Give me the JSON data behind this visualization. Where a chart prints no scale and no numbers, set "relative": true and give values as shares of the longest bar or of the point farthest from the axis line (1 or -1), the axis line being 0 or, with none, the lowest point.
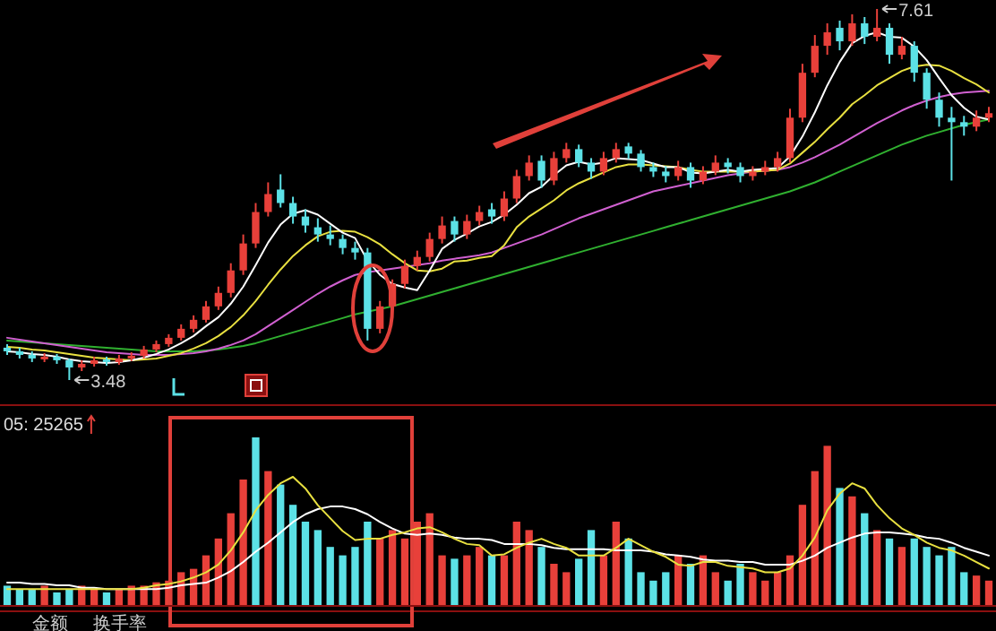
{
  "chart_data": [
    {
      "type": "candlestick",
      "categories": [
        null,
        null,
        null,
        null,
        null,
        null,
        null,
        null,
        null,
        null,
        null,
        null,
        null,
        null,
        null,
        null,
        null,
        null,
        null,
        null,
        null,
        null,
        null,
        null,
        null,
        null,
        null,
        null,
        null,
        null,
        null,
        null,
        null,
        null,
        null,
        null,
        null,
        null,
        null,
        null,
        null,
        null,
        null,
        null,
        null,
        null,
        null,
        null,
        null,
        null,
        null,
        null,
        null,
        null,
        null,
        null,
        null,
        null,
        null,
        null,
        null,
        null,
        null,
        null,
        null,
        null,
        null,
        null,
        null,
        null,
        null,
        null,
        null,
        null,
        null,
        null,
        null,
        null,
        null,
        null
      ],
      "ohlc": [
        [
          3.84,
          3.88,
          3.76,
          3.8
        ],
        [
          3.8,
          3.84,
          3.72,
          3.76
        ],
        [
          3.76,
          3.8,
          3.68,
          3.72
        ],
        [
          3.71,
          3.78,
          3.68,
          3.74
        ],
        [
          3.74,
          3.77,
          3.66,
          3.7
        ],
        [
          3.7,
          3.72,
          3.48,
          3.62
        ],
        [
          3.62,
          3.7,
          3.58,
          3.66
        ],
        [
          3.66,
          3.74,
          3.63,
          3.7
        ],
        [
          3.71,
          3.74,
          3.64,
          3.68
        ],
        [
          3.68,
          3.76,
          3.65,
          3.72
        ],
        [
          3.72,
          3.79,
          3.69,
          3.75
        ],
        [
          3.75,
          3.86,
          3.72,
          3.82
        ],
        [
          3.82,
          3.92,
          3.79,
          3.88
        ],
        [
          3.88,
          3.99,
          3.85,
          3.95
        ],
        [
          3.95,
          4.1,
          3.92,
          4.05
        ],
        [
          4.05,
          4.2,
          4.01,
          4.15
        ],
        [
          4.15,
          4.36,
          4.12,
          4.3
        ],
        [
          4.3,
          4.52,
          4.26,
          4.45
        ],
        [
          4.45,
          4.78,
          4.4,
          4.7
        ],
        [
          4.7,
          5.1,
          4.65,
          5.0
        ],
        [
          5.0,
          5.45,
          4.95,
          5.35
        ],
        [
          5.35,
          5.68,
          5.3,
          5.55
        ],
        [
          5.6,
          5.77,
          5.4,
          5.45
        ],
        [
          5.45,
          5.52,
          5.22,
          5.3
        ],
        [
          5.3,
          5.38,
          5.12,
          5.2
        ],
        [
          5.18,
          5.28,
          5.02,
          5.1
        ],
        [
          5.1,
          5.2,
          4.98,
          5.05
        ],
        [
          5.05,
          5.1,
          4.88,
          4.95
        ],
        [
          4.95,
          5.02,
          4.82,
          4.9
        ],
        [
          4.9,
          4.95,
          3.92,
          4.05
        ],
        [
          4.05,
          4.36,
          4.0,
          4.3
        ],
        [
          4.3,
          4.6,
          4.25,
          4.55
        ],
        [
          4.55,
          4.82,
          4.5,
          4.75
        ],
        [
          4.75,
          4.92,
          4.7,
          4.85
        ],
        [
          4.85,
          5.12,
          4.8,
          5.05
        ],
        [
          5.05,
          5.3,
          5.0,
          5.2
        ],
        [
          5.25,
          5.3,
          5.02,
          5.1
        ],
        [
          5.1,
          5.32,
          5.05,
          5.25
        ],
        [
          5.25,
          5.42,
          5.2,
          5.35
        ],
        [
          5.38,
          5.45,
          5.22,
          5.3
        ],
        [
          5.3,
          5.58,
          5.25,
          5.5
        ],
        [
          5.5,
          5.82,
          5.45,
          5.75
        ],
        [
          5.75,
          5.98,
          5.7,
          5.9
        ],
        [
          5.92,
          5.98,
          5.62,
          5.7
        ],
        [
          5.7,
          6.02,
          5.65,
          5.95
        ],
        [
          5.95,
          6.12,
          5.9,
          6.05
        ],
        [
          6.05,
          6.1,
          5.85,
          5.9
        ],
        [
          5.9,
          5.95,
          5.72,
          5.8
        ],
        [
          5.8,
          6.02,
          5.76,
          5.95
        ],
        [
          5.95,
          6.12,
          5.9,
          6.05
        ],
        [
          6.08,
          6.12,
          5.94,
          6.0
        ],
        [
          6.0,
          6.04,
          5.8,
          5.85
        ],
        [
          5.85,
          5.9,
          5.74,
          5.8
        ],
        [
          5.8,
          5.86,
          5.68,
          5.75
        ],
        [
          5.75,
          5.92,
          5.7,
          5.85
        ],
        [
          5.85,
          5.9,
          5.62,
          5.7
        ],
        [
          5.7,
          5.86,
          5.66,
          5.8
        ],
        [
          5.8,
          5.98,
          5.76,
          5.9
        ],
        [
          5.9,
          5.95,
          5.78,
          5.85
        ],
        [
          5.85,
          5.9,
          5.68,
          5.75
        ],
        [
          5.75,
          5.86,
          5.7,
          5.8
        ],
        [
          5.8,
          5.92,
          5.76,
          5.85
        ],
        [
          5.85,
          6.02,
          5.8,
          5.95
        ],
        [
          5.95,
          6.5,
          5.9,
          6.4
        ],
        [
          6.4,
          7.0,
          6.35,
          6.9
        ],
        [
          6.9,
          7.32,
          6.85,
          7.2
        ],
        [
          7.2,
          7.45,
          7.1,
          7.35
        ],
        [
          7.4,
          7.48,
          7.15,
          7.25
        ],
        [
          7.25,
          7.55,
          7.2,
          7.45
        ],
        [
          7.45,
          7.52,
          7.22,
          7.3
        ],
        [
          7.3,
          7.61,
          7.25,
          7.4
        ],
        [
          7.4,
          7.45,
          7.0,
          7.1
        ],
        [
          7.1,
          7.3,
          7.05,
          7.2
        ],
        [
          7.2,
          7.25,
          6.8,
          6.9
        ],
        [
          6.9,
          6.95,
          6.5,
          6.6
        ],
        [
          6.6,
          6.68,
          6.3,
          6.4
        ],
        [
          6.4,
          6.52,
          5.7,
          6.35
        ],
        [
          6.35,
          6.42,
          6.2,
          6.3
        ],
        [
          6.3,
          6.48,
          6.25,
          6.4
        ],
        [
          6.4,
          6.52,
          6.35,
          6.45
        ]
      ],
      "colors": [
        "#5ce1e6",
        "#5ce1e6",
        "#5ce1e6",
        "#e8403a",
        "#5ce1e6",
        "#5ce1e6",
        "#e8403a",
        "#e8403a",
        "#5ce1e6",
        "#e8403a",
        "#e8403a",
        "#e8403a",
        "#e8403a",
        "#e8403a",
        "#e8403a",
        "#e8403a",
        "#e8403a",
        "#e8403a",
        "#e8403a",
        "#e8403a",
        "#e8403a",
        "#e8403a",
        "#5ce1e6",
        "#5ce1e6",
        "#5ce1e6",
        "#5ce1e6",
        "#5ce1e6",
        "#5ce1e6",
        "#5ce1e6",
        "#5ce1e6",
        "#e8403a",
        "#e8403a",
        "#e8403a",
        "#e8403a",
        "#e8403a",
        "#e8403a",
        "#5ce1e6",
        "#e8403a",
        "#e8403a",
        "#5ce1e6",
        "#e8403a",
        "#e8403a",
        "#e8403a",
        "#5ce1e6",
        "#e8403a",
        "#e8403a",
        "#5ce1e6",
        "#5ce1e6",
        "#e8403a",
        "#e8403a",
        "#5ce1e6",
        "#5ce1e6",
        "#5ce1e6",
        "#5ce1e6",
        "#e8403a",
        "#5ce1e6",
        "#e8403a",
        "#e8403a",
        "#5ce1e6",
        "#5ce1e6",
        "#e8403a",
        "#e8403a",
        "#e8403a",
        "#e8403a",
        "#e8403a",
        "#e8403a",
        "#e8403a",
        "#5ce1e6",
        "#e8403a",
        "#5ce1e6",
        "#e8403a",
        "#5ce1e6",
        "#e8403a",
        "#5ce1e6",
        "#5ce1e6",
        "#5ce1e6",
        "#5ce1e6",
        "#5ce1e6",
        "#e8403a",
        "#e8403a"
      ],
      "series": [
        {
          "type": "line",
          "color": "#30b030",
          "values": [
            3.92,
            3.91,
            3.9,
            3.89,
            3.88,
            3.87,
            3.86,
            3.85,
            3.84,
            3.83,
            3.82,
            3.81,
            3.8,
            3.8,
            3.8,
            3.8,
            3.81,
            3.82,
            3.84,
            3.86,
            3.89,
            3.93,
            3.97,
            4.01,
            4.05,
            4.09,
            4.13,
            4.17,
            4.21,
            4.24,
            4.27,
            4.3,
            4.34,
            4.38,
            4.42,
            4.46,
            4.5,
            4.54,
            4.58,
            4.62,
            4.66,
            4.7,
            4.74,
            4.78,
            4.82,
            4.86,
            4.9,
            4.94,
            4.98,
            5.02,
            5.06,
            5.1,
            5.14,
            5.18,
            5.22,
            5.26,
            5.3,
            5.34,
            5.38,
            5.42,
            5.46,
            5.5,
            5.54,
            5.58,
            5.63,
            5.68,
            5.74,
            5.8,
            5.86,
            5.92,
            5.98,
            6.04,
            6.1,
            6.15,
            6.2,
            6.24,
            6.28,
            6.32,
            6.35,
            6.38
          ]
        },
        {
          "type": "line",
          "color": "#d060d0",
          "values": [
            3.95,
            3.93,
            3.91,
            3.89,
            3.87,
            3.85,
            3.83,
            3.81,
            3.79,
            3.78,
            3.77,
            3.76,
            3.76,
            3.76,
            3.77,
            3.78,
            3.8,
            3.83,
            3.87,
            3.92,
            3.99,
            4.08,
            4.17,
            4.26,
            4.35,
            4.44,
            4.52,
            4.59,
            4.65,
            4.68,
            4.7,
            4.72,
            4.74,
            4.76,
            4.78,
            4.81,
            4.83,
            4.85,
            4.87,
            4.9,
            4.95,
            5.0,
            5.05,
            5.1,
            5.16,
            5.22,
            5.28,
            5.33,
            5.38,
            5.43,
            5.48,
            5.53,
            5.58,
            5.61,
            5.64,
            5.67,
            5.7,
            5.73,
            5.76,
            5.78,
            5.8,
            5.81,
            5.82,
            5.85,
            5.9,
            5.96,
            6.03,
            6.1,
            6.18,
            6.26,
            6.34,
            6.41,
            6.48,
            6.54,
            6.59,
            6.63,
            6.66,
            6.68,
            6.69,
            6.7
          ]
        },
        {
          "type": "line",
          "color": "#e8e040",
          "values": [
            3.85,
            3.84,
            3.82,
            3.81,
            3.79,
            3.77,
            3.75,
            3.73,
            3.72,
            3.71,
            3.7,
            3.71,
            3.72,
            3.75,
            3.78,
            3.83,
            3.89,
            3.97,
            4.07,
            4.2,
            4.36,
            4.54,
            4.71,
            4.86,
            4.98,
            5.08,
            5.13,
            5.14,
            5.13,
            5.07,
            4.99,
            4.88,
            4.78,
            4.7,
            4.69,
            4.72,
            4.8,
            4.81,
            4.84,
            4.86,
            4.98,
            5.18,
            5.3,
            5.39,
            5.48,
            5.59,
            5.67,
            5.73,
            5.79,
            5.85,
            5.88,
            5.88,
            5.87,
            5.86,
            5.85,
            5.82,
            5.8,
            5.8,
            5.8,
            5.8,
            5.8,
            5.81,
            5.82,
            5.89,
            6.01,
            6.13,
            6.27,
            6.4,
            6.55,
            6.65,
            6.76,
            6.84,
            6.92,
            6.97,
            6.99,
            6.98,
            6.92,
            6.84,
            6.77,
            6.68
          ]
        },
        {
          "type": "line",
          "color": "#ffffff",
          "values": [
            3.8,
            3.79,
            3.77,
            3.76,
            3.74,
            3.71,
            3.69,
            3.68,
            3.67,
            3.68,
            3.7,
            3.73,
            3.77,
            3.82,
            3.89,
            3.97,
            4.08,
            4.18,
            4.33,
            4.52,
            4.76,
            5.01,
            5.21,
            5.33,
            5.37,
            5.32,
            5.22,
            5.12,
            5.06,
            4.81,
            4.65,
            4.55,
            4.51,
            4.48,
            4.7,
            4.94,
            5.04,
            5.11,
            5.19,
            5.24,
            5.32,
            5.43,
            5.56,
            5.63,
            5.76,
            5.87,
            5.91,
            5.88,
            5.9,
            5.95,
            5.94,
            5.93,
            5.89,
            5.85,
            5.85,
            5.79,
            5.78,
            5.8,
            5.82,
            5.8,
            5.82,
            5.83,
            5.84,
            5.97,
            6.19,
            6.46,
            6.76,
            7.02,
            7.23,
            7.31,
            7.35,
            7.3,
            7.29,
            7.19,
            7.04,
            6.84,
            6.65,
            6.51,
            6.41,
            6.38
          ]
        }
      ],
      "annotations": [
        "7.61",
        "3.48"
      ]
    },
    {
      "type": "bar",
      "relative": true,
      "categories": [
        null,
        null,
        null,
        null,
        null,
        null,
        null,
        null,
        null,
        null,
        null,
        null,
        null,
        null,
        null,
        null,
        null,
        null,
        null,
        null,
        null,
        null,
        null,
        null,
        null,
        null,
        null,
        null,
        null,
        null,
        null,
        null,
        null,
        null,
        null,
        null,
        null,
        null,
        null,
        null,
        null,
        null,
        null,
        null,
        null,
        null,
        null,
        null,
        null,
        null,
        null,
        null,
        null,
        null,
        null,
        null,
        null,
        null,
        null,
        null,
        null,
        null,
        null,
        null,
        null,
        null,
        null,
        null,
        null,
        null,
        null,
        null,
        null,
        null,
        null,
        null,
        null,
        null,
        null,
        null
      ],
      "colors": [
        "#5ce1e6",
        "#5ce1e6",
        "#5ce1e6",
        "#e8403a",
        "#5ce1e6",
        "#5ce1e6",
        "#e8403a",
        "#e8403a",
        "#5ce1e6",
        "#e8403a",
        "#e8403a",
        "#e8403a",
        "#e8403a",
        "#e8403a",
        "#e8403a",
        "#e8403a",
        "#e8403a",
        "#e8403a",
        "#e8403a",
        "#e8403a",
        "#5ce1e6",
        "#e8403a",
        "#5ce1e6",
        "#5ce1e6",
        "#5ce1e6",
        "#5ce1e6",
        "#5ce1e6",
        "#5ce1e6",
        "#5ce1e6",
        "#5ce1e6",
        "#e8403a",
        "#e8403a",
        "#e8403a",
        "#e8403a",
        "#e8403a",
        "#e8403a",
        "#5ce1e6",
        "#e8403a",
        "#e8403a",
        "#5ce1e6",
        "#e8403a",
        "#e8403a",
        "#e8403a",
        "#5ce1e6",
        "#e8403a",
        "#e8403a",
        "#5ce1e6",
        "#5ce1e6",
        "#e8403a",
        "#e8403a",
        "#5ce1e6",
        "#5ce1e6",
        "#5ce1e6",
        "#5ce1e6",
        "#e8403a",
        "#5ce1e6",
        "#e8403a",
        "#e8403a",
        "#5ce1e6",
        "#5ce1e6",
        "#e8403a",
        "#e8403a",
        "#e8403a",
        "#e8403a",
        "#e8403a",
        "#e8403a",
        "#e8403a",
        "#5ce1e6",
        "#e8403a",
        "#5ce1e6",
        "#e8403a",
        "#5ce1e6",
        "#e8403a",
        "#5ce1e6",
        "#5ce1e6",
        "#5ce1e6",
        "#5ce1e6",
        "#5ce1e6",
        "#e8403a",
        "#e8403a"
      ],
      "series": [
        {
          "type": "bar",
          "values": [
            0.12,
            0.1,
            0.1,
            0.12,
            0.08,
            0.1,
            0.12,
            0.1,
            0.08,
            0.1,
            0.12,
            0.12,
            0.14,
            0.15,
            0.2,
            0.22,
            0.3,
            0.4,
            0.55,
            0.75,
            1.0,
            0.8,
            0.72,
            0.6,
            0.5,
            0.45,
            0.35,
            0.3,
            0.35,
            0.5,
            0.4,
            0.45,
            0.4,
            0.5,
            0.55,
            0.3,
            0.28,
            0.3,
            0.35,
            0.3,
            0.3,
            0.5,
            0.45,
            0.35,
            0.25,
            0.2,
            0.28,
            0.45,
            0.3,
            0.5,
            0.4,
            0.2,
            0.15,
            0.2,
            0.3,
            0.25,
            0.3,
            0.2,
            0.15,
            0.25,
            0.2,
            0.15,
            0.2,
            0.3,
            0.6,
            0.8,
            0.95,
            0.7,
            0.65,
            0.55,
            0.45,
            0.4,
            0.35,
            0.4,
            0.35,
            0.3,
            0.35,
            0.2,
            0.18,
            0.15
          ]
        }
      ],
      "annotations": [
        "05: 25265",
        "金额",
        "换手率"
      ]
    },
    {
      "type": "line",
      "relative": true,
      "categories": [
        null,
        null,
        null,
        null,
        null,
        null,
        null,
        null,
        null,
        null,
        null,
        null,
        null,
        null,
        null,
        null,
        null,
        null,
        null,
        null,
        null,
        null,
        null,
        null,
        null,
        null,
        null,
        null,
        null,
        null,
        null,
        null,
        null,
        null,
        null,
        null,
        null,
        null,
        null,
        null,
        null,
        null,
        null,
        null,
        null,
        null,
        null,
        null,
        null,
        null,
        null,
        null,
        null,
        null,
        null,
        null,
        null,
        null,
        null,
        null,
        null,
        null,
        null,
        null,
        null,
        null,
        null,
        null,
        null,
        null,
        null,
        null,
        null,
        null,
        null,
        null,
        null,
        null,
        null,
        null
      ],
      "series": [
        {
          "type": "line",
          "color": "#ffffff",
          "values": [
            0.18,
            0.18,
            0.17,
            0.17,
            0.16,
            0.16,
            0.14,
            0.14,
            0.13,
            0.13,
            0.13,
            0.13,
            0.13,
            0.14,
            0.16,
            0.17,
            0.18,
            0.22,
            0.27,
            0.34,
            0.42,
            0.49,
            0.57,
            0.65,
            0.71,
            0.75,
            0.77,
            0.77,
            0.75,
            0.71,
            0.65,
            0.6,
            0.56,
            0.55,
            0.56,
            0.55,
            0.53,
            0.52,
            0.52,
            0.51,
            0.48,
            0.48,
            0.48,
            0.47,
            0.45,
            0.44,
            0.44,
            0.44,
            0.44,
            0.43,
            0.43,
            0.43,
            0.42,
            0.4,
            0.39,
            0.38,
            0.36,
            0.35,
            0.35,
            0.34,
            0.34,
            0.32,
            0.32,
            0.32,
            0.35,
            0.39,
            0.45,
            0.49,
            0.53,
            0.56,
            0.57,
            0.57,
            0.56,
            0.55,
            0.53,
            0.52,
            0.49,
            0.45,
            0.42,
            0.39
          ]
        },
        {
          "type": "line",
          "color": "#e8e040",
          "values": [
            0.13,
            0.13,
            0.13,
            0.13,
            0.13,
            0.13,
            0.13,
            0.13,
            0.13,
            0.13,
            0.13,
            0.14,
            0.16,
            0.17,
            0.19,
            0.22,
            0.26,
            0.32,
            0.43,
            0.57,
            0.74,
            0.86,
            0.95,
            1,
            0.91,
            0.78,
            0.68,
            0.58,
            0.51,
            0.52,
            0.52,
            0.55,
            0.57,
            0.6,
            0.61,
            0.57,
            0.52,
            0.48,
            0.47,
            0.39,
            0.4,
            0.45,
            0.49,
            0.52,
            0.48,
            0.45,
            0.39,
            0.39,
            0.39,
            0.45,
            0.52,
            0.47,
            0.42,
            0.38,
            0.32,
            0.31,
            0.34,
            0.34,
            0.31,
            0.3,
            0.29,
            0.26,
            0.26,
            0.29,
            0.39,
            0.53,
            0.74,
            0.87,
            0.95,
            0.91,
            0.78,
            0.68,
            0.6,
            0.55,
            0.49,
            0.45,
            0.43,
            0.39,
            0.34,
            0.29
          ]
        }
      ]
    }
  ]
}
